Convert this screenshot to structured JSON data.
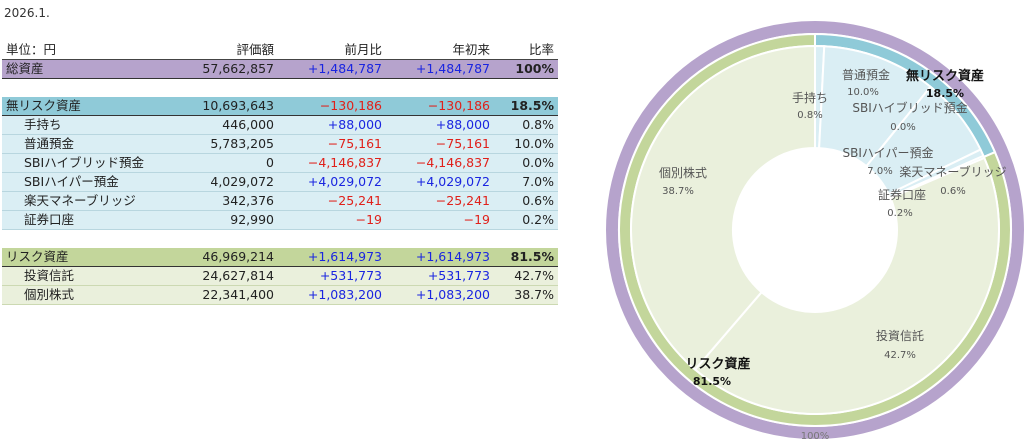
{
  "date": "2026.1.",
  "headers": {
    "unit": "単位：円",
    "value": "評価額",
    "mom": "前月比",
    "ytd": "年初来",
    "ratio": "比率"
  },
  "rows": {
    "total": {
      "name": "総資産",
      "value": "57,662,857",
      "mom": "+1,484,787",
      "ytd": "+1,484,787",
      "ratio": "100%"
    },
    "norisk": {
      "name": "無リスク資産",
      "value": "10,693,643",
      "mom": "−130,186",
      "ytd": "−130,186",
      "ratio": "18.5%"
    },
    "cash": {
      "name": "手持ち",
      "value": "446,000",
      "mom": "+88,000",
      "ytd": "+88,000",
      "ratio": "0.8%"
    },
    "savings": {
      "name": "普通預金",
      "value": "5,783,205",
      "mom": "−75,161",
      "ytd": "−75,161",
      "ratio": "10.0%"
    },
    "sbihyb": {
      "name": "SBIハイブリッド預金",
      "value": "0",
      "mom": "−4,146,837",
      "ytd": "−4,146,837",
      "ratio": "0.0%"
    },
    "sbihyp": {
      "name": "SBIハイパー預金",
      "value": "4,029,072",
      "mom": "+4,029,072",
      "ytd": "+4,029,072",
      "ratio": "7.0%"
    },
    "rakuten": {
      "name": "楽天マネーブリッジ",
      "value": "342,376",
      "mom": "−25,241",
      "ytd": "−25,241",
      "ratio": "0.6%"
    },
    "sec": {
      "name": "証券口座",
      "value": "92,990",
      "mom": "−19",
      "ytd": "−19",
      "ratio": "0.2%"
    },
    "risk": {
      "name": "リスク資産",
      "value": "46,969,214",
      "mom": "+1,614,973",
      "ytd": "+1,614,973",
      "ratio": "81.5%"
    },
    "trust": {
      "name": "投資信託",
      "value": "24,627,814",
      "mom": "+531,773",
      "ytd": "+531,773",
      "ratio": "42.7%"
    },
    "stocks": {
      "name": "個別株式",
      "value": "22,341,400",
      "mom": "+1,083,200",
      "ytd": "+1,083,200",
      "ratio": "38.7%"
    }
  },
  "colors": {
    "total": "#b6a3cc",
    "norisk": "#8fcad8",
    "norisk_sub": "#daeef4",
    "risk": "#c3d69b",
    "risk_sub": "#eaf0dc",
    "positive": "#1a25e0",
    "negative": "#e0201a"
  },
  "chart_data": {
    "type": "pie",
    "variant": "multi-level donut (sunburst)",
    "rings": [
      {
        "level": "outer",
        "slices": [
          {
            "label": "",
            "value": 100.0,
            "pct_label": "100%"
          }
        ]
      },
      {
        "level": "middle",
        "slices": [
          {
            "label": "無リスク資産",
            "value": 18.5,
            "pct_label": "18.5%"
          },
          {
            "label": "リスク資産",
            "value": 81.5,
            "pct_label": "81.5%"
          }
        ]
      },
      {
        "level": "inner",
        "slices": [
          {
            "label": "手持ち",
            "value": 0.8,
            "pct_label": "0.8%",
            "group": "norisk"
          },
          {
            "label": "普通預金",
            "value": 10.0,
            "pct_label": "10.0%",
            "group": "norisk"
          },
          {
            "label": "SBIハイブリッド預金",
            "value": 0.0,
            "pct_label": "0.0%",
            "group": "norisk"
          },
          {
            "label": "SBIハイパー預金",
            "value": 7.0,
            "pct_label": "7.0%",
            "group": "norisk"
          },
          {
            "label": "楽天マネーブリッジ",
            "value": 0.6,
            "pct_label": "0.6%",
            "group": "norisk"
          },
          {
            "label": "証券口座",
            "value": 0.2,
            "pct_label": "0.2%",
            "group": "norisk"
          },
          {
            "label": "投資信託",
            "value": 42.7,
            "pct_label": "42.7%",
            "group": "risk"
          },
          {
            "label": "個別株式",
            "value": 38.7,
            "pct_label": "38.7%",
            "group": "risk"
          }
        ]
      }
    ],
    "legend": "none"
  }
}
